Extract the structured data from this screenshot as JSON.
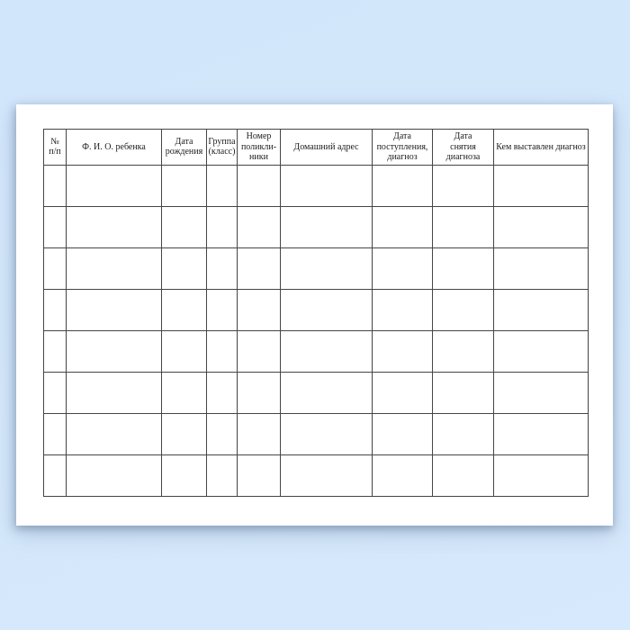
{
  "page": {
    "background_color": "#d4e8fb",
    "paper_color": "#ffffff",
    "grid_line_color": "#454545"
  },
  "table": {
    "row_count": 8,
    "headers": [
      {
        "id": "row-number",
        "label": "№\nп/п"
      },
      {
        "id": "child-name",
        "label": "Ф. И. О. ребенка"
      },
      {
        "id": "birth-date",
        "label": "Дата\nрождения"
      },
      {
        "id": "group-class",
        "label": "Группа\n(класс)"
      },
      {
        "id": "clinic-number",
        "label": "Номер\nполикли-\nники"
      },
      {
        "id": "home-address",
        "label": "Домашний адрес"
      },
      {
        "id": "admission-date-diagnosis",
        "label": "Дата\nпоступления,\nдиагноз"
      },
      {
        "id": "diagnosis-removal-date",
        "label": "Дата\nснятия\nдиагноза"
      },
      {
        "id": "diagnosed-by",
        "label": "Кем выставлен диагноз"
      }
    ],
    "rows": [
      [
        "",
        "",
        "",
        "",
        "",
        "",
        "",
        "",
        ""
      ],
      [
        "",
        "",
        "",
        "",
        "",
        "",
        "",
        "",
        ""
      ],
      [
        "",
        "",
        "",
        "",
        "",
        "",
        "",
        "",
        ""
      ],
      [
        "",
        "",
        "",
        "",
        "",
        "",
        "",
        "",
        ""
      ],
      [
        "",
        "",
        "",
        "",
        "",
        "",
        "",
        "",
        ""
      ],
      [
        "",
        "",
        "",
        "",
        "",
        "",
        "",
        "",
        ""
      ],
      [
        "",
        "",
        "",
        "",
        "",
        "",
        "",
        "",
        ""
      ],
      [
        "",
        "",
        "",
        "",
        "",
        "",
        "",
        "",
        ""
      ]
    ]
  }
}
